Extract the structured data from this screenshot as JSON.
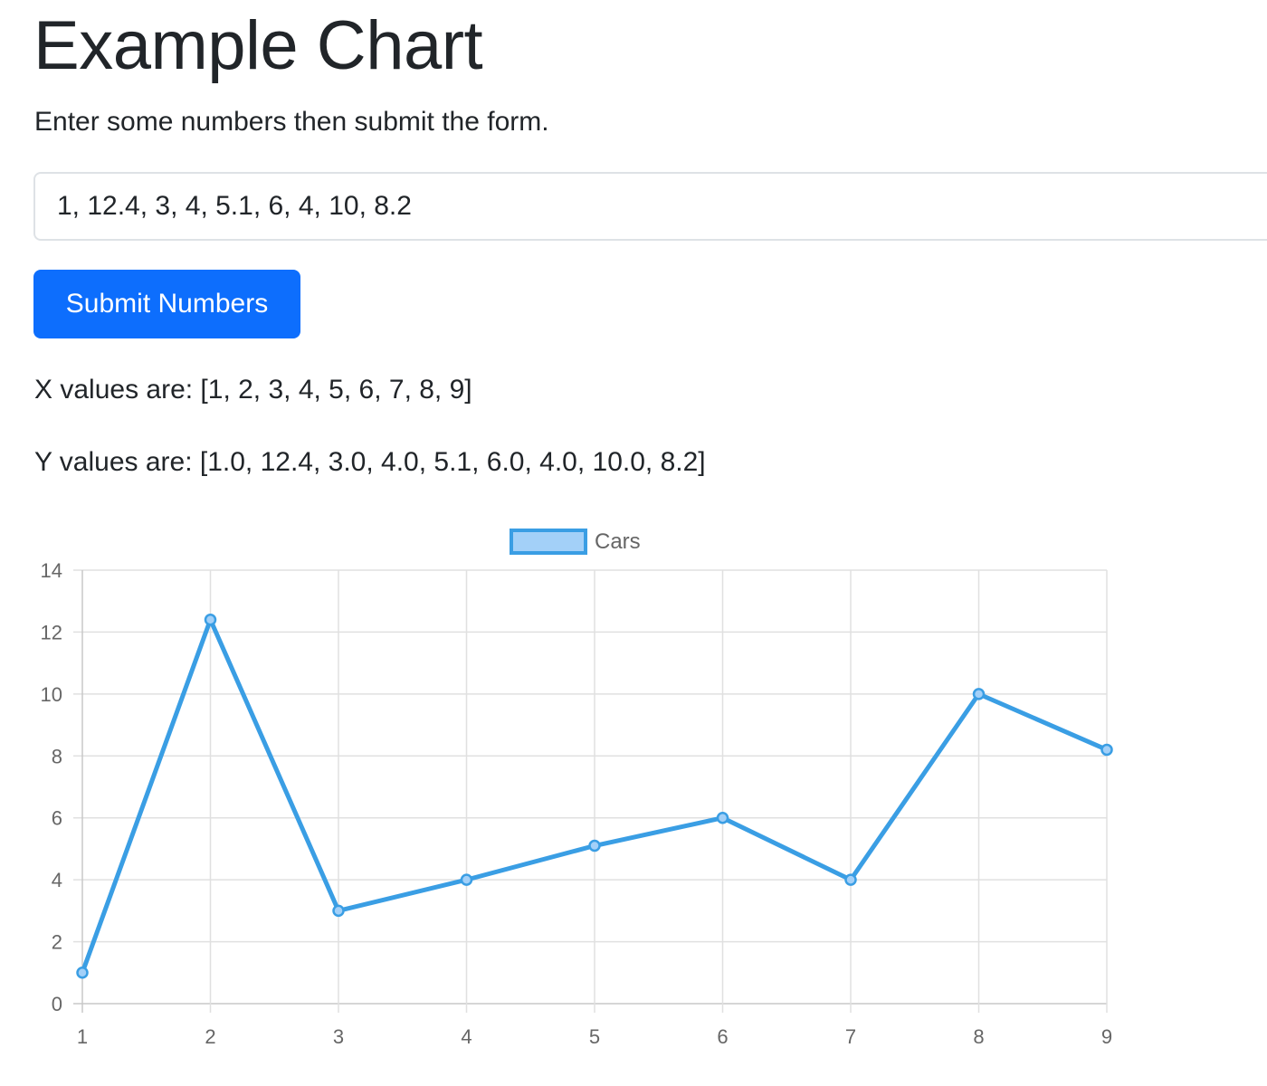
{
  "page": {
    "title": "Example Chart",
    "intro": "Enter some numbers then submit the form."
  },
  "form": {
    "numbers_input_value": "1, 12.4, 3, 4, 5.1, 6, 4, 10, 8.2",
    "submit_label": "Submit Numbers"
  },
  "results": {
    "x_values_text": "X values are: [1, 2, 3, 4, 5, 6, 7, 8, 9]",
    "y_values_text": "Y values are: [1.0, 12.4, 3.0, 4.0, 5.1, 6.0, 4.0, 10.0, 8.2]"
  },
  "colors": {
    "primary_button": "#0d6efd",
    "line": "#3a9ee4",
    "legend_fill": "#a3d0f8",
    "grid": "#e0e0e0",
    "tick_text": "#666666"
  },
  "chart_data": {
    "type": "line",
    "title": "",
    "xlabel": "",
    "ylabel": "",
    "x": [
      1,
      2,
      3,
      4,
      5,
      6,
      7,
      8,
      9
    ],
    "categories": [
      "1",
      "2",
      "3",
      "4",
      "5",
      "6",
      "7",
      "8",
      "9"
    ],
    "series": [
      {
        "name": "Cars",
        "values": [
          1.0,
          12.4,
          3.0,
          4.0,
          5.1,
          6.0,
          4.0,
          10.0,
          8.2
        ]
      }
    ],
    "ylim": [
      0,
      14
    ],
    "yticks": [
      0,
      2,
      4,
      6,
      8,
      10,
      12,
      14
    ],
    "grid": true,
    "legend": {
      "position": "top",
      "entries": [
        "Cars"
      ]
    }
  }
}
